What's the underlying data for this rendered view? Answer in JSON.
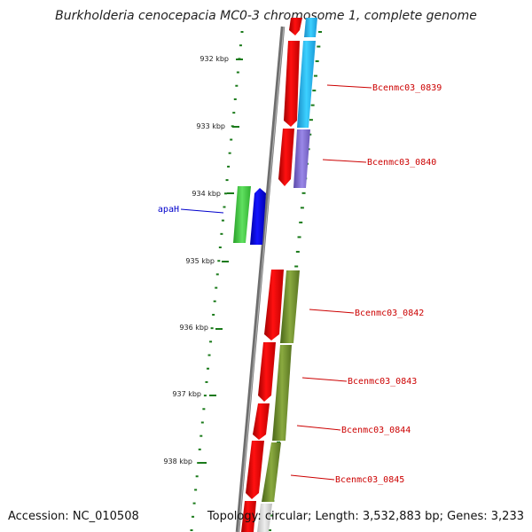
{
  "title": "Burkholderia cenocepacia MC0-3 chromosome 1, complete genome",
  "accession": "Accession: NC_010508",
  "summary": "Topology: circular; Length: 3,532,883 bp; Genes: 3,233",
  "ticks": [
    {
      "label": "932 kbp"
    },
    {
      "label": "933 kbp"
    },
    {
      "label": "934 kbp"
    },
    {
      "label": "935 kbp"
    },
    {
      "label": "936 kbp"
    },
    {
      "label": "937 kbp"
    },
    {
      "label": "938 kbp"
    }
  ],
  "genes": [
    {
      "name": "Bcenmc03_0839",
      "color": "#cc0000"
    },
    {
      "name": "Bcenmc03_0840",
      "color": "#cc0000"
    },
    {
      "name": "apaH",
      "color": "#0000cc"
    },
    {
      "name": "Bcenmc03_0842",
      "color": "#cc0000"
    },
    {
      "name": "Bcenmc03_0843",
      "color": "#cc0000"
    },
    {
      "name": "Bcenmc03_0844",
      "color": "#cc0000"
    },
    {
      "name": "Bcenmc03_0845",
      "color": "#cc0000"
    }
  ],
  "colors": {
    "forward_cds": "#ff0000",
    "reverse_cds": "#1010e8",
    "tick": "#1a7a1a",
    "backbone": "#888888",
    "cog_cyan": "#22b8f0",
    "cog_purple": "#7a66cc",
    "cog_green": "#40c840",
    "cog_olive": "#6b8a28"
  }
}
